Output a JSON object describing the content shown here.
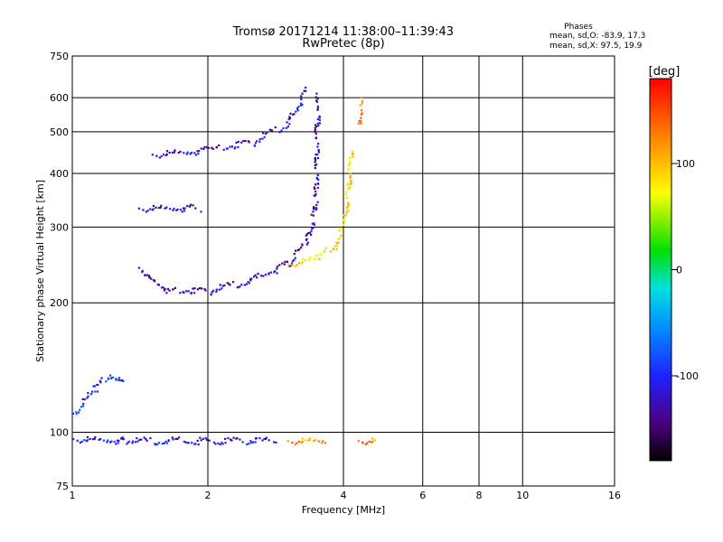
{
  "header": {
    "title": "Tromsø 20171214 11:38:00–11:39:43",
    "subtitle": "RwPretec (8p)",
    "phases_title": "Phases",
    "phases_o": "mean, sd,O: -83.9, 17.3",
    "phases_x": "mean, sd,X:  97.5, 19.9"
  },
  "chart_data": {
    "type": "scatter",
    "xlabel": "Frequency [MHz]",
    "ylabel": "Stationary phase Virtual Height [km]",
    "x_scale": "log",
    "y_scale": "log",
    "xlim": [
      1,
      16
    ],
    "ylim": [
      75,
      750
    ],
    "x_ticks": [
      1,
      2,
      4,
      6,
      8,
      10,
      16
    ],
    "x_tick_labels": [
      "1",
      "2",
      "4",
      "6",
      "8",
      "10",
      "16"
    ],
    "y_ticks": [
      75,
      100,
      200,
      300,
      400,
      500,
      600,
      750
    ],
    "y_tick_labels": [
      "75",
      "100",
      "200",
      "300",
      "400",
      "500",
      "600",
      "750"
    ],
    "grid": true,
    "colorbar": {
      "label": "[deg]",
      "range": [
        -180,
        180
      ],
      "ticks": [
        -100,
        0,
        100
      ],
      "tick_labels": [
        "-100",
        "0",
        "100"
      ],
      "colormap": "rainbow (black → purple → blue → cyan → green → yellow → orange → red)"
    },
    "series": [
      {
        "phase": -95,
        "segments": [
          [
            1.0,
            96
          ],
          [
            1.3,
            95
          ],
          [
            1.3,
            95
          ],
          [
            2.8,
            95
          ]
        ]
      },
      {
        "phase": 130,
        "segments": [
          [
            3.0,
            95
          ],
          [
            3.6,
            95
          ]
        ]
      },
      {
        "phase": 140,
        "segments": [
          [
            4.3,
            95
          ],
          [
            4.7,
            95
          ]
        ]
      },
      {
        "phase": -80,
        "segments": [
          [
            1.0,
            110
          ],
          [
            1.12,
            125
          ],
          [
            1.2,
            135
          ],
          [
            1.3,
            130
          ]
        ]
      },
      {
        "phase": -110,
        "segments": [
          [
            1.4,
            240
          ],
          [
            1.6,
            212
          ],
          [
            2.0,
            212
          ],
          [
            2.5,
            225
          ],
          [
            3.0,
            245
          ],
          [
            3.3,
            275
          ],
          [
            3.45,
            330
          ],
          [
            3.5,
            600
          ]
        ]
      },
      {
        "phase": -100,
        "segments": [
          [
            1.5,
            440
          ],
          [
            2.0,
            450
          ],
          [
            2.5,
            470
          ],
          [
            3.0,
            520
          ],
          [
            3.3,
            620
          ]
        ]
      },
      {
        "phase": -105,
        "segments": [
          [
            1.4,
            330
          ],
          [
            1.9,
            330
          ]
        ]
      },
      {
        "phase": 100,
        "segments": [
          [
            3.0,
            245
          ],
          [
            3.5,
            252
          ],
          [
            3.8,
            270
          ],
          [
            4.0,
            300
          ],
          [
            4.1,
            380
          ],
          [
            4.15,
            450
          ]
        ]
      },
      {
        "phase": 140,
        "segments": [
          [
            4.3,
            520
          ],
          [
            4.4,
            590
          ]
        ]
      }
    ]
  }
}
